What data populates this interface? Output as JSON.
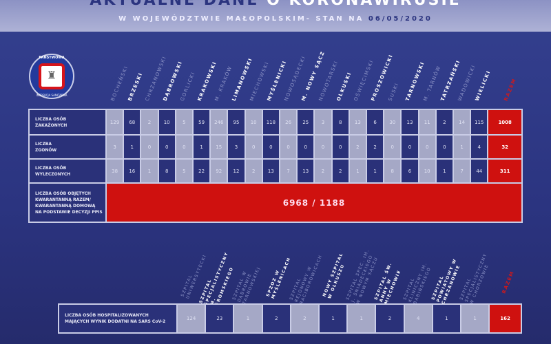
{
  "header": {
    "title_part1": "AKTUALNE DANE",
    "title_part2": "O KORONAWIRUSIE",
    "subtitle": "W WOJEWÓDZTWIE MAŁOPOLSKIM- STAN NA",
    "date": "06/05/2020"
  },
  "logo": {
    "text_top": "PAŃSTWOWA",
    "text_bottom": "INSPEKCJA SANITARNA"
  },
  "colors": {
    "header_bg": "#aeb2d6",
    "bg": "#2b3480",
    "cell_light": "#a5a8c6",
    "cell_dark": "#2a3179",
    "total_red": "#cf110f"
  },
  "districts": [
    "BOCHEŃSKI",
    "BRZESKI",
    "CHRZANOWSKI",
    "DĄBROWSKI",
    "GORLICKI",
    "KRAKOWSKI",
    "M. KRAKÓW",
    "LIMANOWSKI",
    "MIECHOWSKI",
    "MYŚLENICKI",
    "NOWOSĄDECKI",
    "M. NOWY SĄCZ",
    "NOWOTARSKI",
    "OLKUSKI",
    "OŚWIĘCIMSKI",
    "PROSZOWICKI",
    "SUSKI",
    "TARNOWSKI",
    "M. TARNÓW",
    "TATRZAŃSKI",
    "WADOWICKI",
    "WIELICKI"
  ],
  "total_label": "RAZEM",
  "rows": [
    {
      "label": "LICZBA OSÓB\nZAKAŻONYCH",
      "values": [
        129,
        68,
        2,
        10,
        5,
        59,
        246,
        95,
        10,
        118,
        26,
        25,
        3,
        8,
        13,
        6,
        30,
        13,
        11,
        2,
        14,
        115
      ],
      "total": 1008
    },
    {
      "label": "LICZBA\nZGONÓW",
      "values": [
        3,
        1,
        0,
        0,
        0,
        1,
        15,
        3,
        0,
        0,
        0,
        0,
        0,
        0,
        2,
        2,
        0,
        0,
        0,
        0,
        1,
        4
      ],
      "total": 32
    },
    {
      "label": "LICZBA OSÓB\nWYLECZONYCH",
      "values": [
        38,
        16,
        1,
        8,
        5,
        22,
        92,
        12,
        2,
        13,
        7,
        13,
        2,
        2,
        1,
        1,
        8,
        6,
        10,
        1,
        7,
        44
      ],
      "total": 311
    }
  ],
  "quarantine": {
    "label": "LICZBA OSÓB OBJĘTYCH\nKWARANTANNĄ RAZEM/\nKWARANTANNĄ DOMOWĄ\nNA PODSTAWIE DECYZJI PPIS",
    "value": "6968 / 1188"
  },
  "hospitals": [
    "SZPITAL UNIWERSYTECKI",
    "SZPITAL SPECJALISTYCZNY IM. ŻEROMSKIEGO",
    "SZPITAL W DĄBROWIE TARNOWSKIEJ",
    "SPZOZ W MYŚLENICACH",
    "SZPITAL REJONOWY W RACIBOROWICACH",
    "NOWY SZPITAL W OLKUSZU",
    "SZPITAL SPEC. IM. J. ŚNIADECKIEGO W NOWYM SĄCZU",
    "SZPITAL ŚW. ANNY W MIECHOWIE",
    "SZPITAL KLINICZNY IM. BABIŃSKIEGO",
    "SZPITAL POWIATOWY W CHRZANOWIE",
    "SZPITAL SPECJALISTYCZNY W CHORZOWIE"
  ],
  "hospital_row": {
    "label": "LICZBA OSÓB HOSPITALIZOWANYCH\nMAJĄCYCH WYNIK DODATNI NA SARS CoV-2",
    "values": [
      124,
      23,
      1,
      2,
      2,
      1,
      1,
      2,
      4,
      1,
      1
    ],
    "total": 162
  }
}
